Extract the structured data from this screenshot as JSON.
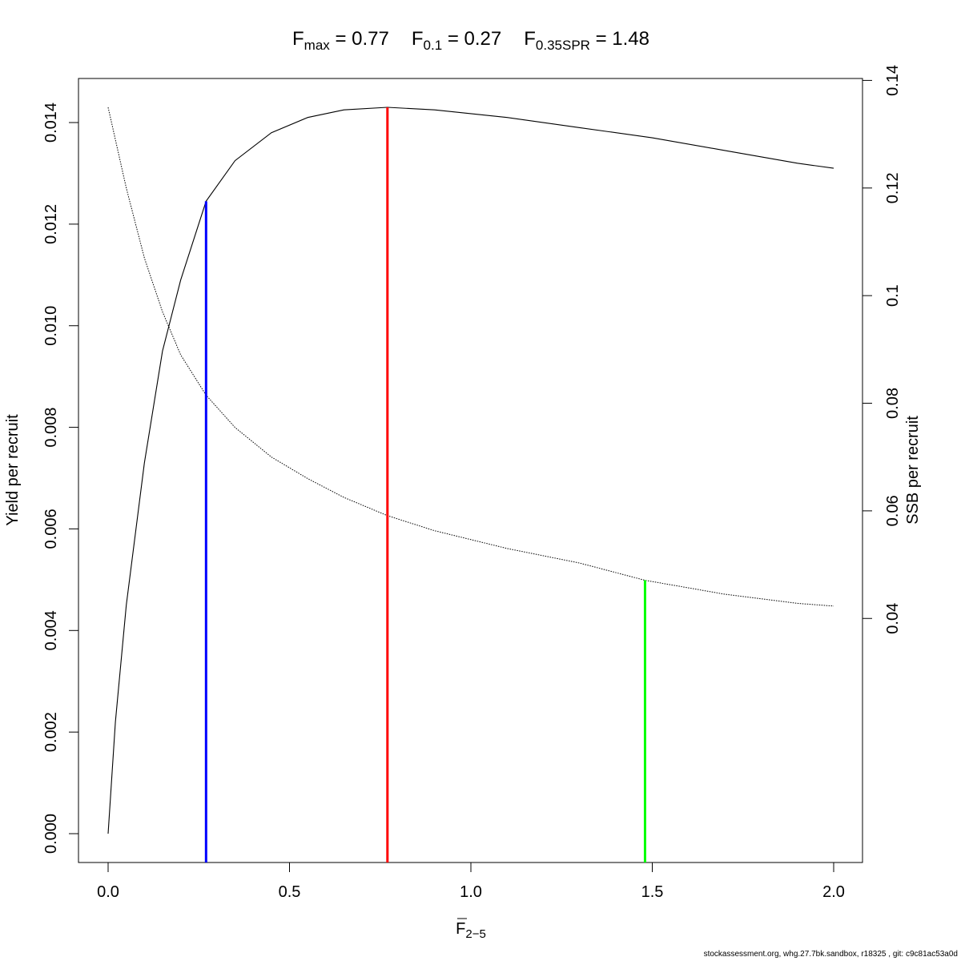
{
  "chart_data": {
    "type": "line",
    "title_parts": [
      {
        "main": "F",
        "sub": "max",
        "value": "0.77"
      },
      {
        "main": "F",
        "sub": "0.1",
        "value": "0.27"
      },
      {
        "main": "F",
        "sub": "0.35SPR",
        "value": "1.48"
      }
    ],
    "xlabel": {
      "main": "F",
      "sub": "2−5"
    },
    "ylabel": "Yield per recruit",
    "y2label": "SSB per recruit",
    "xlim": [
      0,
      2
    ],
    "ylim": [
      0,
      0.0143
    ],
    "y2lim": [
      0,
      0.135
    ],
    "x_ticks": [
      "0.0",
      "0.5",
      "1.0",
      "1.5",
      "2.0"
    ],
    "y_ticks": [
      "0.000",
      "0.002",
      "0.004",
      "0.006",
      "0.008",
      "0.010",
      "0.012",
      "0.014"
    ],
    "y2_ticks": [
      "0.04",
      "0.06",
      "0.08",
      "0.1",
      "0.12",
      "0.14"
    ],
    "series": [
      {
        "axis": "left",
        "style": "solid",
        "color": "#000000",
        "x": [
          0,
          0.02,
          0.05,
          0.1,
          0.15,
          0.2,
          0.27,
          0.35,
          0.45,
          0.55,
          0.65,
          0.77,
          0.9,
          1.1,
          1.3,
          1.5,
          1.7,
          1.9,
          2.0
        ],
        "y": [
          0,
          0.0022,
          0.0045,
          0.0073,
          0.0095,
          0.0109,
          0.01245,
          0.01325,
          0.0138,
          0.0141,
          0.01425,
          0.0143,
          0.01425,
          0.0141,
          0.0139,
          0.0137,
          0.01345,
          0.0132,
          0.0131
        ]
      },
      {
        "axis": "right",
        "style": "dotted",
        "color": "#000000",
        "x": [
          0,
          0.05,
          0.1,
          0.15,
          0.2,
          0.27,
          0.35,
          0.45,
          0.55,
          0.65,
          0.77,
          0.9,
          1.1,
          1.3,
          1.48,
          1.7,
          1.9,
          2.0
        ],
        "y": [
          0.135,
          0.12,
          0.107,
          0.097,
          0.089,
          0.0815,
          0.0755,
          0.07,
          0.066,
          0.0625,
          0.0591,
          0.0563,
          0.053,
          0.0503,
          0.0471,
          0.0445,
          0.0428,
          0.0423
        ]
      }
    ],
    "reference_lines": [
      {
        "name": "F0.1",
        "x": 0.27,
        "ytop": 0.01245,
        "axis": "left",
        "color": "#0000ff"
      },
      {
        "name": "Fmax",
        "x": 0.77,
        "ytop": 0.0143,
        "axis": "left",
        "color": "#ff0000"
      },
      {
        "name": "F0.35SPR",
        "x": 1.48,
        "ytop": 0.0471,
        "axis": "right",
        "color": "#00ff00"
      }
    ]
  },
  "footer": "stockassessment.org, whg.27.7bk.sandbox, r18325 , git: c9c81ac53a0d"
}
